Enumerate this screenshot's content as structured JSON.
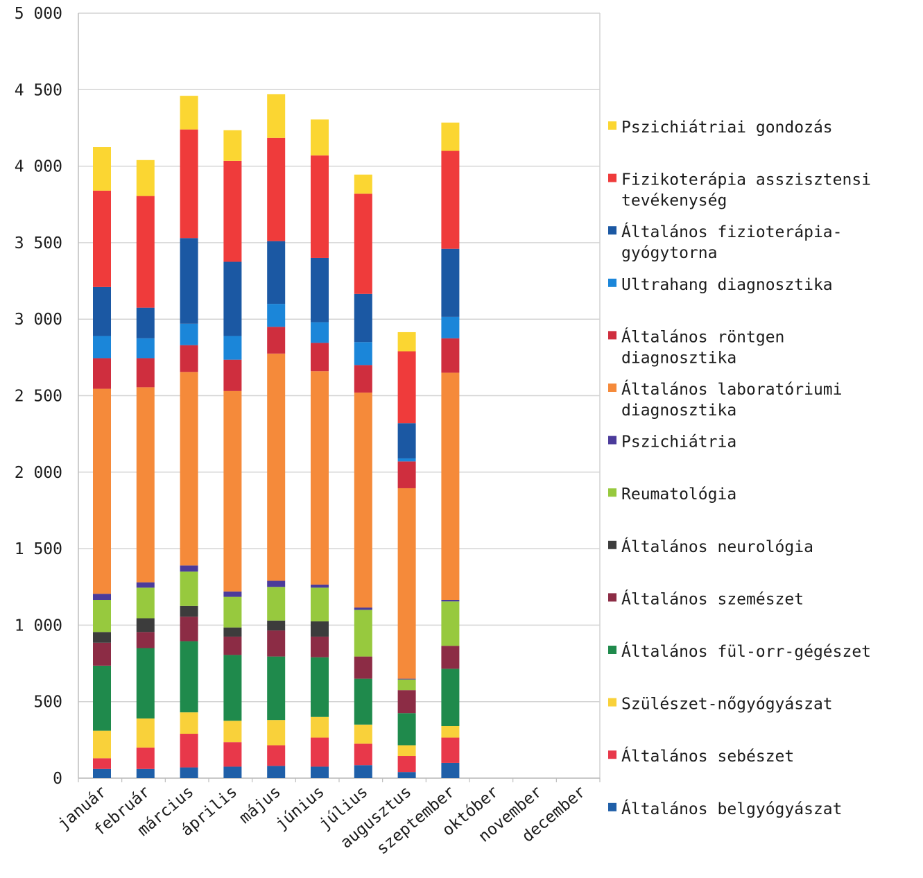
{
  "chart_data": {
    "type": "bar",
    "stacked": true,
    "title": "",
    "xlabel": "",
    "ylabel": "",
    "ylim": [
      0,
      5000
    ],
    "grid": true,
    "legend_position": "right",
    "y_ticks": [
      {
        "value": 0,
        "label": "0"
      },
      {
        "value": 500,
        "label": "500"
      },
      {
        "value": 1000,
        "label": "1 000"
      },
      {
        "value": 1500,
        "label": "1 500"
      },
      {
        "value": 2000,
        "label": "2 000"
      },
      {
        "value": 2500,
        "label": "2 500"
      },
      {
        "value": 3000,
        "label": "3 000"
      },
      {
        "value": 3500,
        "label": "3 500"
      },
      {
        "value": 4000,
        "label": "4 000"
      },
      {
        "value": 4500,
        "label": "4 500"
      },
      {
        "value": 5000,
        "label": "5 000"
      }
    ],
    "categories": [
      "január",
      "február",
      "március",
      "április",
      "május",
      "június",
      "július",
      "augusztus",
      "szeptember",
      "október",
      "november",
      "december"
    ],
    "series": [
      {
        "name": "Általános belgyógyászat",
        "color": "#1f5fa8",
        "values": [
          60,
          60,
          70,
          75,
          80,
          75,
          85,
          40,
          100,
          null,
          null,
          null
        ]
      },
      {
        "name": "Általános sebészet",
        "color": "#e8384a",
        "values": [
          70,
          140,
          220,
          160,
          135,
          190,
          140,
          105,
          165,
          null,
          null,
          null
        ]
      },
      {
        "name": "Szülészet-nőgyógyászat",
        "color": "#f9d13a",
        "values": [
          180,
          190,
          140,
          140,
          165,
          135,
          125,
          70,
          75,
          null,
          null,
          null
        ]
      },
      {
        "name": "Általános fül-orr-gégészet",
        "color": "#1f8a4c",
        "values": [
          425,
          460,
          465,
          430,
          415,
          390,
          300,
          210,
          375,
          null,
          null,
          null
        ]
      },
      {
        "name": "Általános szemészet",
        "color": "#8c2c45",
        "values": [
          150,
          105,
          160,
          120,
          170,
          135,
          145,
          150,
          150,
          null,
          null,
          null
        ]
      },
      {
        "name": "Általános neurológia",
        "color": "#3c3c3c",
        "values": [
          70,
          90,
          70,
          60,
          65,
          100,
          0,
          0,
          0,
          null,
          null,
          null
        ]
      },
      {
        "name": "Reumatológia",
        "color": "#97c93e",
        "values": [
          210,
          200,
          225,
          200,
          220,
          220,
          305,
          70,
          290,
          null,
          null,
          null
        ]
      },
      {
        "name": "Pszichiátria",
        "color": "#4b3b9b",
        "values": [
          40,
          35,
          40,
          35,
          40,
          20,
          15,
          5,
          10,
          null,
          null,
          null
        ]
      },
      {
        "name": "Általános laboratóriumi diagnosztika",
        "color": "#f58a3a",
        "values": [
          1340,
          1275,
          1265,
          1310,
          1485,
          1395,
          1405,
          1245,
          1485,
          null,
          null,
          null
        ]
      },
      {
        "name": "Általános röntgen diagnosztika",
        "color": "#cf2e3e",
        "values": [
          200,
          190,
          175,
          205,
          175,
          185,
          180,
          175,
          225,
          null,
          null,
          null
        ]
      },
      {
        "name": "Ultrahang diagnosztika",
        "color": "#1b86d9",
        "values": [
          145,
          130,
          140,
          155,
          150,
          135,
          150,
          20,
          140,
          null,
          null,
          null
        ]
      },
      {
        "name": "Általános fizioterápia-gyógytorna",
        "color": "#1b58a3",
        "values": [
          320,
          200,
          560,
          485,
          410,
          420,
          315,
          230,
          445,
          null,
          null,
          null
        ]
      },
      {
        "name": "Fizikoterápia asszisztensi tevékenység",
        "color": "#ef3b3b",
        "values": [
          630,
          730,
          710,
          660,
          675,
          670,
          655,
          470,
          640,
          null,
          null,
          null
        ]
      },
      {
        "name": "Pszichiátriai gondozás",
        "color": "#fbd632",
        "values": [
          285,
          235,
          220,
          200,
          285,
          235,
          125,
          125,
          185,
          null,
          null,
          null
        ]
      }
    ]
  },
  "legend": {
    "items": [
      {
        "series_index": 13,
        "lines": [
          "Pszichiátriai gondozás"
        ]
      },
      {
        "series_index": 12,
        "lines": [
          "Fizikoterápia asszisztensi",
          "tevékenység"
        ]
      },
      {
        "series_index": 11,
        "lines": [
          "Általános fizioterápia-",
          "gyógytorna"
        ]
      },
      {
        "series_index": 10,
        "lines": [
          "Ultrahang diagnosztika"
        ]
      },
      {
        "series_index": 9,
        "lines": [
          "Általános röntgen",
          "diagnosztika"
        ]
      },
      {
        "series_index": 8,
        "lines": [
          "Általános laboratóriumi",
          "diagnosztika"
        ]
      },
      {
        "series_index": 7,
        "lines": [
          "Pszichiátria"
        ]
      },
      {
        "series_index": 6,
        "lines": [
          "Reumatológia"
        ]
      },
      {
        "series_index": 5,
        "lines": [
          "Általános neurológia"
        ]
      },
      {
        "series_index": 4,
        "lines": [
          "Általános szemészet"
        ]
      },
      {
        "series_index": 3,
        "lines": [
          "Általános fül-orr-gégészet"
        ]
      },
      {
        "series_index": 2,
        "lines": [
          "Szülészet-nőgyógyászat"
        ]
      },
      {
        "series_index": 1,
        "lines": [
          "Általános sebészet"
        ]
      },
      {
        "series_index": 0,
        "lines": [
          "Általános belgyógyászat"
        ]
      }
    ]
  },
  "colors": {
    "grid": "#d4d4d4",
    "axis": "#bdbdbd",
    "text": "#1c1c1c",
    "background": "#ffffff"
  }
}
